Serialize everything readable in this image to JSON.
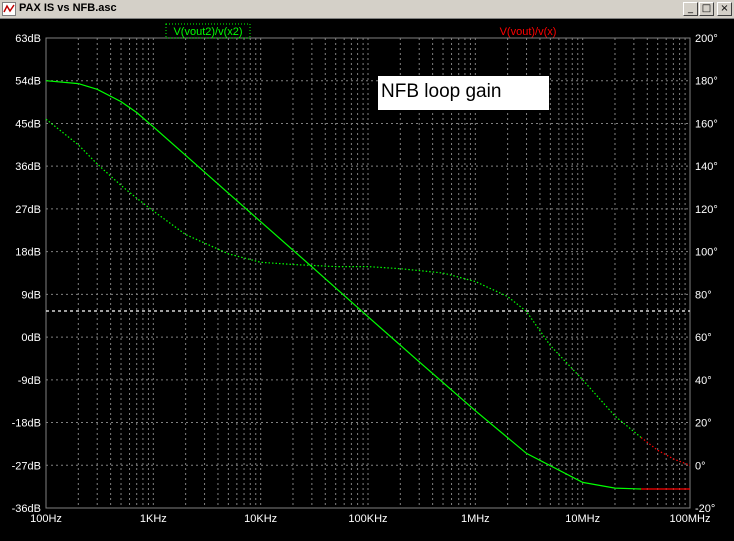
{
  "window": {
    "title": "PAX IS vs NFB.asc",
    "icon": "ltspice-waveform-icon",
    "buttons": {
      "minimize": "_",
      "maximize": "□",
      "close": "×"
    }
  },
  "chart_data": {
    "type": "line",
    "title": "",
    "annotation": "NFB loop gain",
    "colors": {
      "background": "#000000",
      "grid": "#808080",
      "axis_text": "#ffffff",
      "green": "#00ff00",
      "red": "#ff0000",
      "ref_line": "#ffffff"
    },
    "x_axis": {
      "scale": "log",
      "range": [
        100,
        100000000
      ],
      "ticks": [
        "100Hz",
        "1KHz",
        "10KHz",
        "100KHz",
        "1MHz",
        "10MHz",
        "100MHz"
      ]
    },
    "y_left": {
      "unit": "dB",
      "range": [
        -36,
        63
      ],
      "ticks": [
        "63dB",
        "54dB",
        "45dB",
        "36dB",
        "27dB",
        "18dB",
        "9dB",
        "0dB",
        "-9dB",
        "-18dB",
        "-27dB",
        "-36dB"
      ]
    },
    "y_right": {
      "unit": "degrees",
      "range": [
        -20,
        200
      ],
      "ticks": [
        "200°",
        "180°",
        "160°",
        "140°",
        "120°",
        "100°",
        "80°",
        "60°",
        "40°",
        "20°",
        "0°",
        "-20°"
      ]
    },
    "legend": [
      "V(vout2)/v(x2)",
      "V(vout)/v(x)"
    ],
    "series": [
      {
        "name": "V(vout2)/v(x2)",
        "kind": "magnitude",
        "color": "#00ff00",
        "style": "solid",
        "axis": "left",
        "x": [
          100,
          200,
          300,
          500,
          700,
          1000,
          2000,
          5000,
          10000,
          30000,
          100000,
          300000,
          1000000,
          3000000,
          10000000,
          20000000,
          35000000
        ],
        "y": [
          54,
          53.4,
          52.2,
          49.6,
          47.3,
          44.3,
          38.3,
          30.3,
          24.3,
          14.8,
          4.3,
          -5.2,
          -15.5,
          -24.5,
          -30.6,
          -31.8,
          -32
        ]
      },
      {
        "name": "V(vout2)/v(x2)",
        "kind": "phase",
        "color": "#00ff00",
        "style": "dotted",
        "axis": "right",
        "x": [
          100,
          200,
          300,
          500,
          700,
          1000,
          2000,
          5000,
          10000,
          20000,
          50000,
          100000,
          200000,
          500000,
          1000000,
          2000000,
          3000000,
          5000000,
          10000000,
          20000000,
          35000000
        ],
        "y": [
          162,
          150,
          141,
          131,
          125,
          119,
          108,
          99,
          95,
          94,
          93,
          93,
          92,
          90,
          86,
          79,
          72,
          56,
          40,
          23,
          13
        ]
      },
      {
        "name": "V(vout)/v(x)",
        "kind": "magnitude",
        "color": "#ff0000",
        "style": "solid",
        "axis": "left",
        "x": [
          35000000,
          50000000,
          100000000
        ],
        "y": [
          -32,
          -32,
          -32
        ]
      },
      {
        "name": "V(vout)/v(x)",
        "kind": "phase",
        "color": "#ff0000",
        "style": "dotted",
        "axis": "right",
        "x": [
          35000000,
          50000000,
          70000000,
          100000000
        ],
        "y": [
          13,
          7,
          3,
          0
        ]
      },
      {
        "name": "",
        "kind": "reference",
        "color": "#ffffff",
        "style": "dashed",
        "axis": "left",
        "x": [
          100,
          100000000
        ],
        "y": [
          5.5,
          5.5
        ]
      }
    ]
  }
}
